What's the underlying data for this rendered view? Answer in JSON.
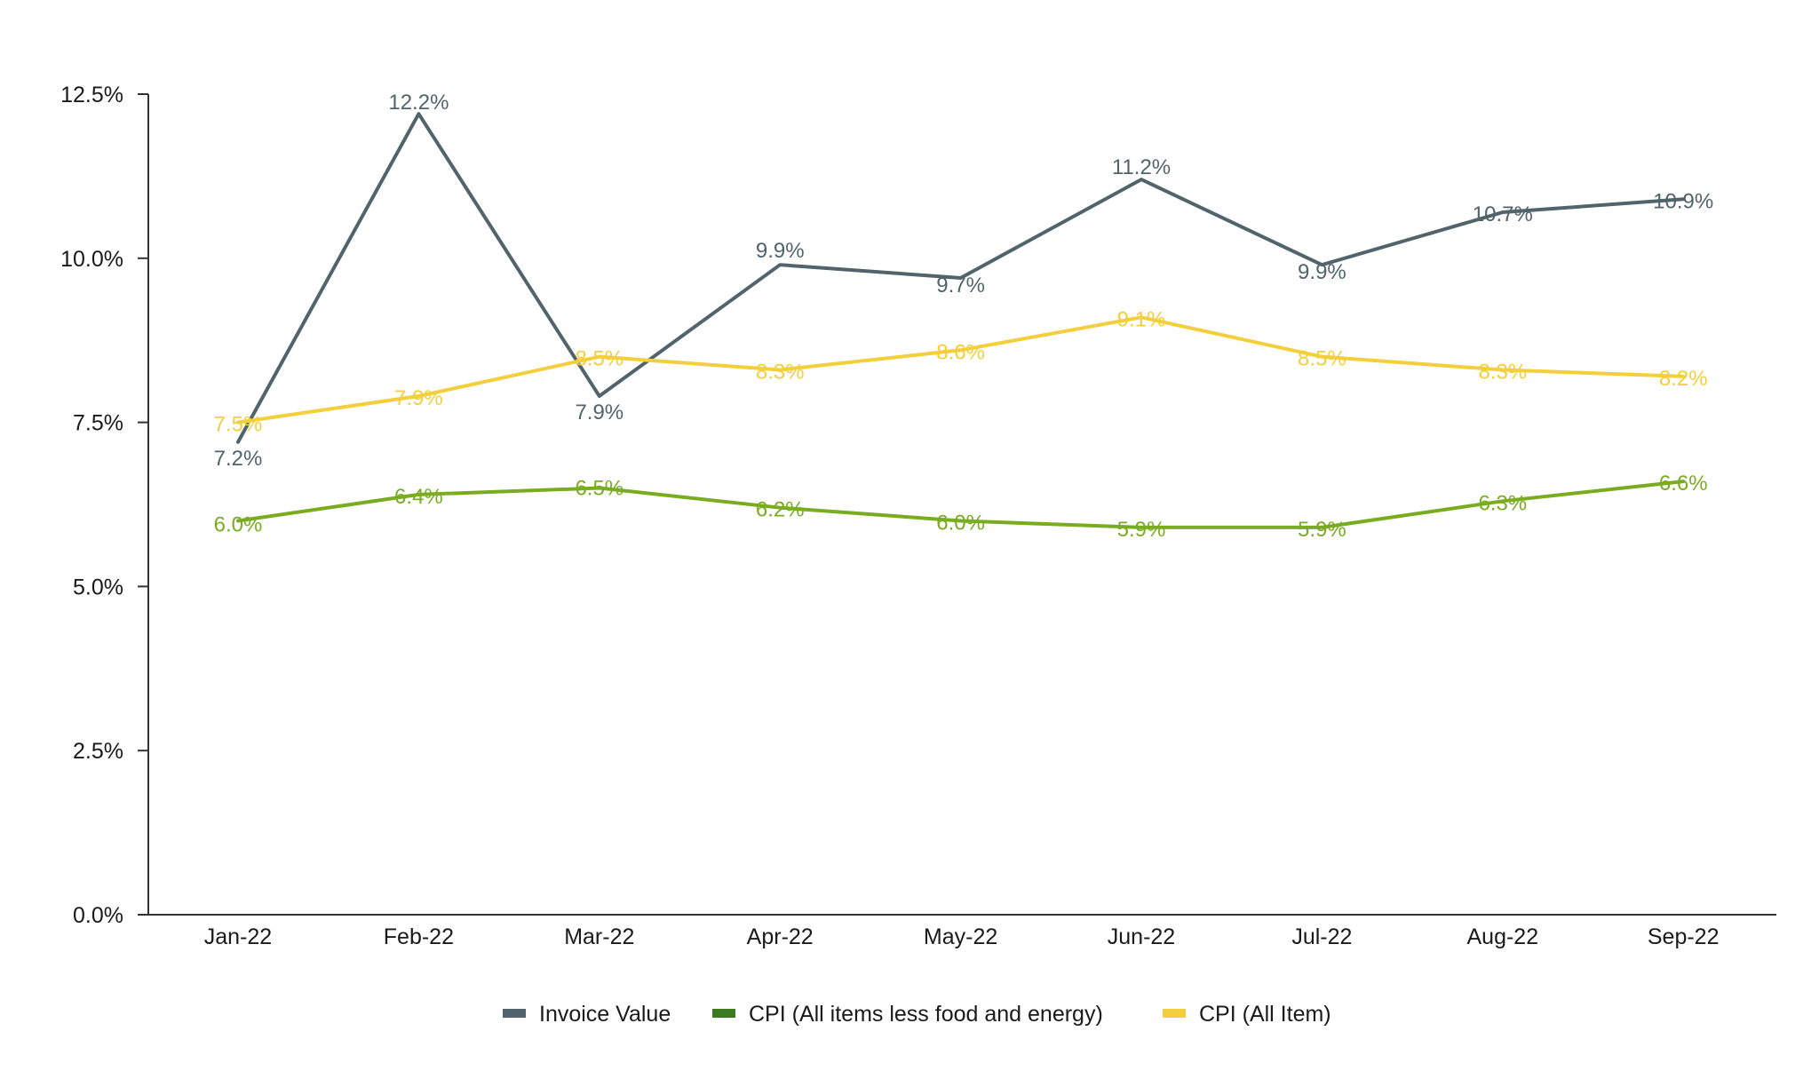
{
  "chart_data": {
    "type": "line",
    "categories": [
      "Jan-22",
      "Feb-22",
      "Mar-22",
      "Apr-22",
      "May-22",
      "Jun-22",
      "Jul-22",
      "Aug-22",
      "Sep-22"
    ],
    "y_ticks": [
      "0.0%",
      "2.5%",
      "5.0%",
      "7.5%",
      "10.0%",
      "12.5%"
    ],
    "ylim": [
      0,
      12.5
    ],
    "y_tick_values": [
      0,
      2.5,
      5,
      7.5,
      10,
      12.5
    ],
    "grid": false,
    "legend_position": "bottom",
    "series": [
      {
        "name": "Invoice Value",
        "color": "#51646c",
        "values": [
          7.2,
          12.2,
          7.9,
          9.9,
          9.7,
          11.2,
          9.9,
          10.7,
          10.9
        ],
        "labels": [
          "7.2%",
          "12.2%",
          "7.9%",
          "9.9%",
          "9.7%",
          "11.2%",
          "9.9%",
          "10.7%",
          "10.9%"
        ]
      },
      {
        "name": "CPI (All items less food and energy)",
        "color": "#7aac22",
        "legend_color": "#3c7a1f",
        "values": [
          6.0,
          6.4,
          6.5,
          6.2,
          6.0,
          5.9,
          5.9,
          6.3,
          6.6
        ],
        "labels": [
          "6.0%",
          "6.4%",
          "6.5%",
          "6.2%",
          "6.0%",
          "5.9%",
          "5.9%",
          "6.3%",
          "6.6%"
        ]
      },
      {
        "name": "CPI (All Item)",
        "color": "#f3cf3b",
        "values": [
          7.5,
          7.9,
          8.5,
          8.3,
          8.6,
          9.1,
          8.5,
          8.3,
          8.2
        ],
        "labels": [
          "7.5%",
          "7.9%",
          "8.5%",
          "8.3%",
          "8.6%",
          "9.1%",
          "8.5%",
          "8.3%",
          "8.2%"
        ]
      }
    ]
  }
}
